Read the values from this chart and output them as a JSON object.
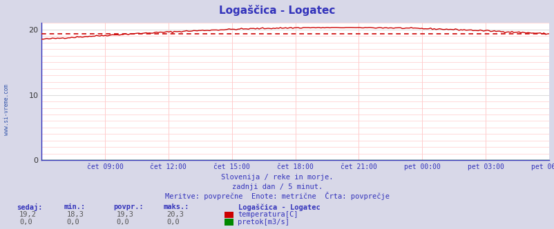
{
  "title": "Logaščica - Logatec",
  "title_color": "#3333bb",
  "bg_color": "#d8d8e8",
  "plot_bg_color": "#ffffff",
  "xlabel_color": "#3333bb",
  "xlabels": [
    "čet 09:00",
    "čet 12:00",
    "čet 15:00",
    "čet 18:00",
    "čet 21:00",
    "pet 00:00",
    "pet 03:00",
    "pet 06:00"
  ],
  "ylim": [
    0,
    21
  ],
  "yticks": [
    0,
    10,
    20
  ],
  "temp_color": "#cc0000",
  "flow_color": "#008800",
  "avg_value": 19.3,
  "temp_min": 18.3,
  "temp_max": 20.3,
  "watermark_color": "#3355aa",
  "sub_text1": "Slovenija / reke in morje.",
  "sub_text2": "zadnji dan / 5 minut.",
  "sub_text3": "Meritve: povprečne  Enote: metrične  Črta: povprečje",
  "sub_text_color": "#3333bb",
  "legend_title": "Logaščica - Logatec",
  "legend_temp_label": "temperatura[C]",
  "legend_flow_label": "pretok[m3/s]",
  "legend_color": "#3333bb",
  "table_headers": [
    "sedaj:",
    "min.:",
    "povpr.:",
    "maks.:"
  ],
  "table_temp_values": [
    "19,2",
    "18,3",
    "19,3",
    "20,3"
  ],
  "table_flow_values": [
    "0,0",
    "0,0",
    "0,0",
    "0,0"
  ],
  "table_color": "#3333bb",
  "side_label": "www.si-vreme.com",
  "side_label_color": "#3355aa",
  "spine_color": "#3333bb",
  "grid_minor_color": "#ffcccc",
  "grid_major_color": "#dddddd"
}
